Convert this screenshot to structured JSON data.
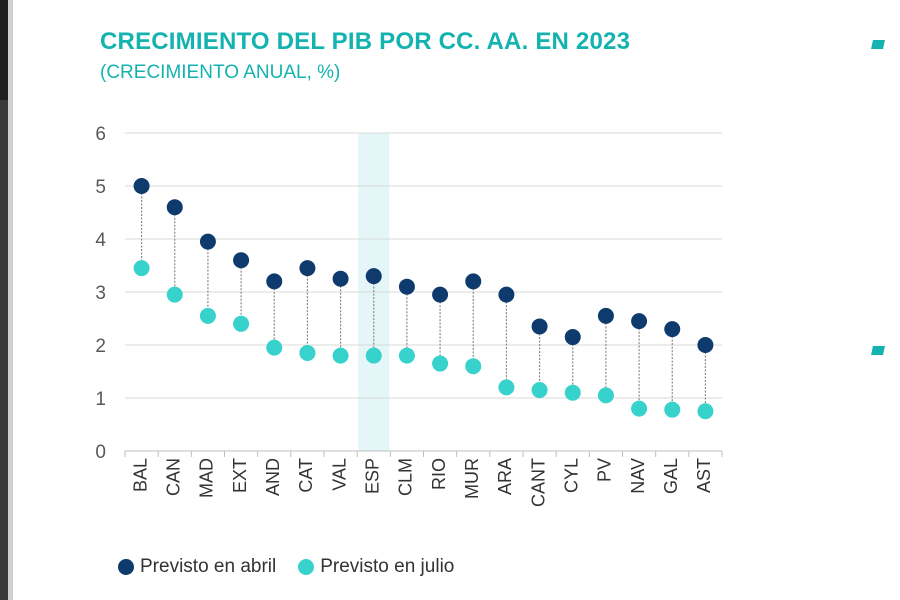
{
  "title": "CRECIMIENTO DEL PIB POR CC. AA. EN 2023",
  "subtitle": "(CRECIMIENTO ANUAL, %)",
  "colors": {
    "april": "#0e3a6e",
    "july": "#38d2cc",
    "accent": "#14b3b0",
    "highlight": "#e4f6f8"
  },
  "chart_data": {
    "type": "scatter",
    "title": "CRECIMIENTO DEL PIB POR CC. AA. EN 2023",
    "subtitle": "(CRECIMIENTO ANUAL, %)",
    "categories": [
      "BAL",
      "CAN",
      "MAD",
      "EXT",
      "AND",
      "CAT",
      "VAL",
      "ESP",
      "CLM",
      "RIO",
      "MUR",
      "ARA",
      "CANT",
      "CYL",
      "PV",
      "NAV",
      "GAL",
      "AST"
    ],
    "series": [
      {
        "name": "Previsto en abril",
        "values": [
          5.0,
          4.6,
          3.95,
          3.6,
          3.2,
          3.45,
          3.25,
          3.3,
          3.1,
          2.95,
          3.2,
          2.95,
          2.35,
          2.15,
          2.55,
          2.45,
          2.3,
          2.0
        ]
      },
      {
        "name": "Previsto en julio",
        "values": [
          3.45,
          2.95,
          2.55,
          2.4,
          1.95,
          1.85,
          1.8,
          1.8,
          1.8,
          1.65,
          1.6,
          1.2,
          1.15,
          1.1,
          1.05,
          0.8,
          0.78,
          0.75
        ]
      }
    ],
    "highlight_category": "ESP",
    "ylim": [
      0,
      6
    ],
    "yticks": [
      "0",
      "1",
      "2",
      "3",
      "4",
      "5",
      "6"
    ],
    "grid": true,
    "legend_position": "bottom-left"
  }
}
